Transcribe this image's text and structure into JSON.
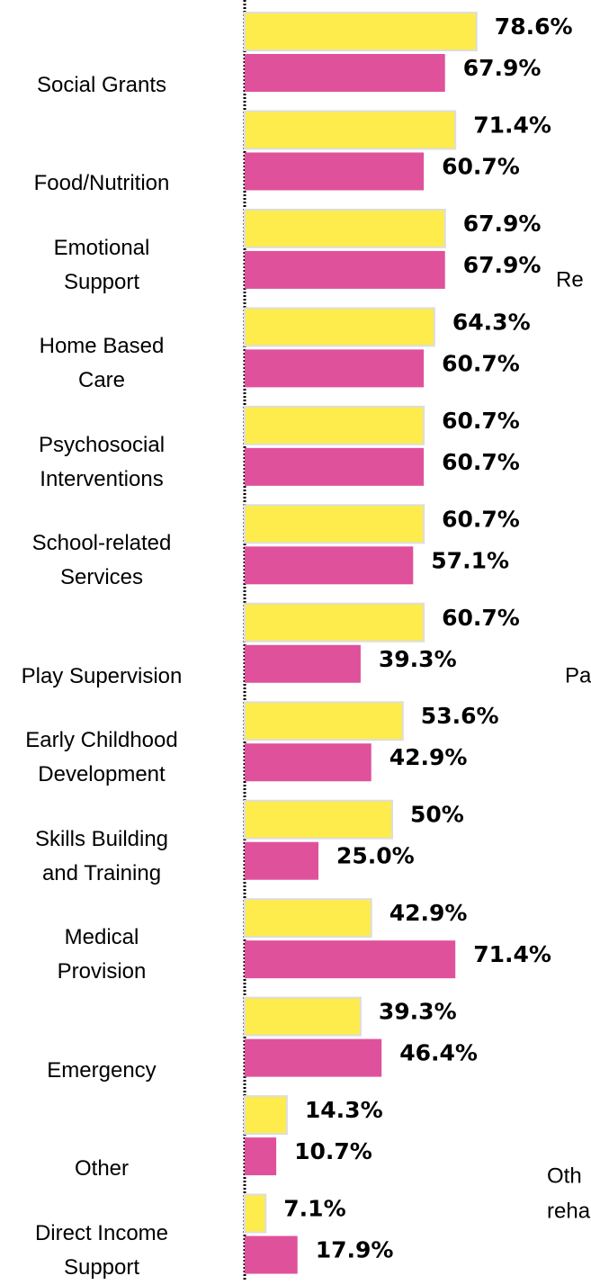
{
  "chart_data": {
    "type": "bar",
    "orientation": "horizontal",
    "categories": [
      "Social Grants",
      "Food/Nutrition",
      "Emotional\nSupport",
      "Home Based\nCare",
      "Psychosocial\nInterventions",
      "School-related\nServices",
      "Play Supervision",
      "Early Childhood\nDevelopment",
      "Skills Building\nand Training",
      "Medical\nProvision",
      "Emergency",
      "Other",
      "Direct Income\nSupport"
    ],
    "series": [
      {
        "color": "#fdec4b",
        "values": [
          78.6,
          71.4,
          67.9,
          64.3,
          60.7,
          60.7,
          60.7,
          53.6,
          50,
          42.9,
          39.3,
          14.3,
          7.1
        ],
        "value_labels": [
          "78.6%",
          "71.4%",
          "67.9%",
          "64.3%",
          "60.7%",
          "60.7%",
          "60.7%",
          "53.6%",
          "50%",
          "42.9%",
          "39.3%",
          "14.3%",
          "7.1%"
        ]
      },
      {
        "color": "#e0519b",
        "values": [
          67.9,
          60.7,
          67.9,
          60.7,
          60.7,
          57.1,
          39.3,
          42.9,
          25.0,
          71.4,
          46.4,
          10.7,
          17.9
        ],
        "value_labels": [
          "67.9%",
          "60.7%",
          "67.9%",
          "60.7%",
          "60.7%",
          "57.1%",
          "39.3%",
          "42.9%",
          "25.0%",
          "71.4%",
          "46.4%",
          "10.7%",
          "17.9%"
        ]
      }
    ],
    "xlim": [
      0,
      100
    ],
    "annotations": [
      "Re",
      "Pa",
      "Oth",
      "reha"
    ]
  }
}
